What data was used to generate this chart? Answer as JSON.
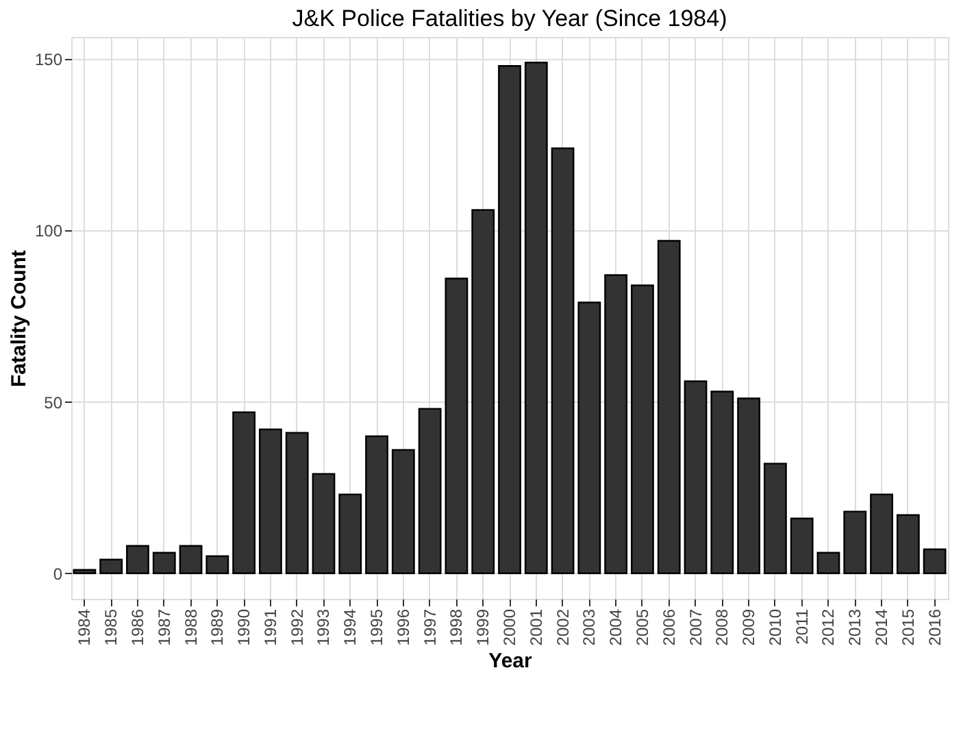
{
  "chart_data": {
    "type": "bar",
    "title": "J&K Police Fatalities by Year (Since 1984)",
    "xlabel": "Year",
    "ylabel": "Fatality Count",
    "categories": [
      "1984",
      "1985",
      "1986",
      "1987",
      "1988",
      "1989",
      "1990",
      "1991",
      "1992",
      "1993",
      "1994",
      "1995",
      "1996",
      "1997",
      "1998",
      "1999",
      "2000",
      "2001",
      "2002",
      "2003",
      "2004",
      "2005",
      "2006",
      "2007",
      "2008",
      "2009",
      "2010",
      "2011",
      "2012",
      "2013",
      "2014",
      "2015",
      "2016"
    ],
    "values": [
      1,
      4,
      8,
      6,
      8,
      5,
      47,
      42,
      41,
      29,
      23,
      40,
      36,
      48,
      86,
      106,
      148,
      149,
      124,
      79,
      87,
      84,
      97,
      56,
      53,
      51,
      32,
      16,
      6,
      18,
      23,
      17,
      7
    ],
    "color": "#333333",
    "ylim": [
      -7.45,
      156.45
    ],
    "yticks": [
      0,
      50,
      100,
      150
    ],
    "grid": true
  }
}
